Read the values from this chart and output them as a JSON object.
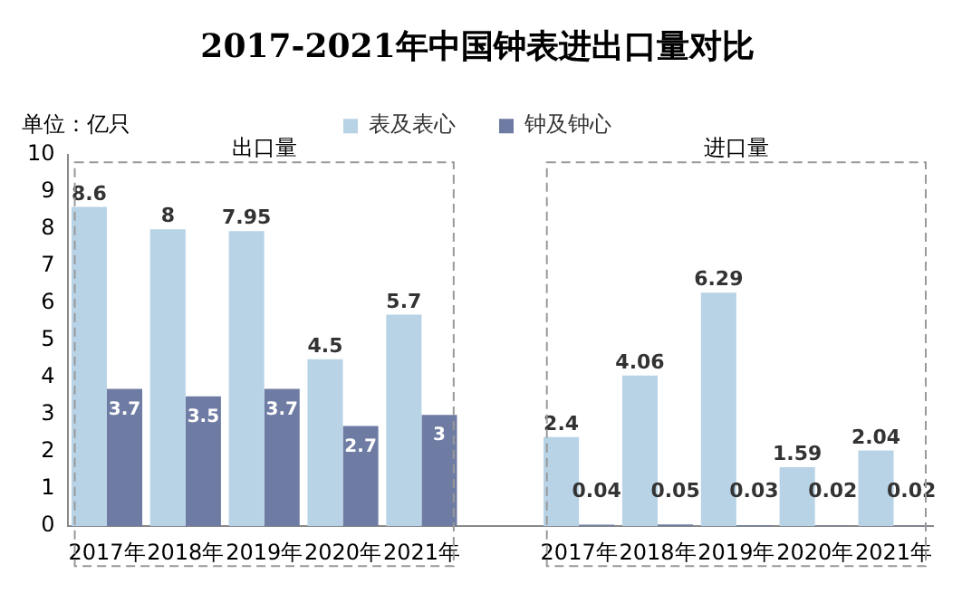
{
  "chart_data": {
    "type": "bar",
    "title": "2017-2021年中国钟表进出口量对比",
    "ylabel": "单位：亿只",
    "categories": [
      "2017年",
      "2018年",
      "2019年",
      "2020年",
      "2021年",
      null,
      "2017年",
      "2018年",
      "2019年",
      "2020年",
      "2021年"
    ],
    "series": [
      {
        "name": "表及表心",
        "color": "#b8d3e6",
        "values": [
          8.6,
          8,
          7.95,
          4.5,
          5.7,
          null,
          2.4,
          4.06,
          6.29,
          1.59,
          2.04
        ]
      },
      {
        "name": "钟及钟心",
        "color": "#6e7ba3",
        "values": [
          3.7,
          3.5,
          3.7,
          2.7,
          3,
          null,
          0.04,
          0.05,
          0.03,
          0.02,
          0.02
        ]
      }
    ],
    "annotations": [
      "出口量",
      "进口量"
    ],
    "ylim": [
      0,
      10
    ],
    "yticks": [
      0,
      1,
      2,
      3,
      4,
      5,
      6,
      7,
      8,
      9,
      10
    ],
    "grid": false,
    "legend": "top",
    "data_labels": true
  }
}
